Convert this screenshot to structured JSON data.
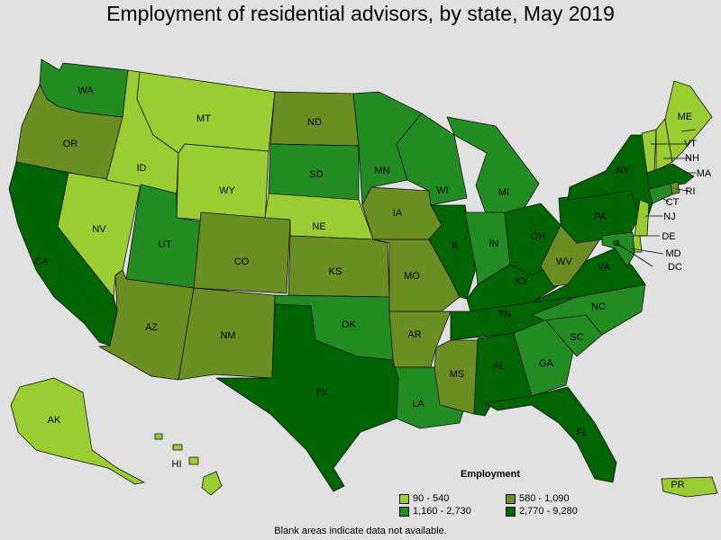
{
  "title": "Employment of residential advisors, by state, May 2019",
  "legend": {
    "title": "Employment",
    "bins": [
      {
        "label": "90 - 540",
        "color": "#9acd32"
      },
      {
        "label": "580 - 1,090",
        "color": "#6b8e23"
      },
      {
        "label": "1,160 - 2,730",
        "color": "#228b22"
      },
      {
        "label": "2,770 - 9,280",
        "color": "#006400"
      }
    ]
  },
  "footnote": "Blank areas indicate data not available.",
  "colors": {
    "background": "#e1e1e1",
    "border": "#111111"
  },
  "states": [
    {
      "abbr": "WA",
      "bin": 2
    },
    {
      "abbr": "OR",
      "bin": 1
    },
    {
      "abbr": "CA",
      "bin": 3
    },
    {
      "abbr": "NV",
      "bin": 0
    },
    {
      "abbr": "ID",
      "bin": 0
    },
    {
      "abbr": "MT",
      "bin": 0
    },
    {
      "abbr": "WY",
      "bin": 0
    },
    {
      "abbr": "UT",
      "bin": 2
    },
    {
      "abbr": "AZ",
      "bin": 1
    },
    {
      "abbr": "CO",
      "bin": 1
    },
    {
      "abbr": "NM",
      "bin": 1
    },
    {
      "abbr": "ND",
      "bin": 1
    },
    {
      "abbr": "SD",
      "bin": 2
    },
    {
      "abbr": "NE",
      "bin": 0
    },
    {
      "abbr": "KS",
      "bin": 1
    },
    {
      "abbr": "OK",
      "bin": 2
    },
    {
      "abbr": "TX",
      "bin": 3
    },
    {
      "abbr": "MN",
      "bin": 2
    },
    {
      "abbr": "IA",
      "bin": 1
    },
    {
      "abbr": "MO",
      "bin": 1
    },
    {
      "abbr": "AR",
      "bin": 1
    },
    {
      "abbr": "LA",
      "bin": 2
    },
    {
      "abbr": "WI",
      "bin": 2
    },
    {
      "abbr": "IL",
      "bin": 3
    },
    {
      "abbr": "MI",
      "bin": 2
    },
    {
      "abbr": "IN",
      "bin": 2
    },
    {
      "abbr": "OH",
      "bin": 3
    },
    {
      "abbr": "KY",
      "bin": 3
    },
    {
      "abbr": "TN",
      "bin": 3
    },
    {
      "abbr": "MS",
      "bin": 1
    },
    {
      "abbr": "AL",
      "bin": 3
    },
    {
      "abbr": "GA",
      "bin": 2
    },
    {
      "abbr": "FL",
      "bin": 3
    },
    {
      "abbr": "SC",
      "bin": 2
    },
    {
      "abbr": "NC",
      "bin": 2
    },
    {
      "abbr": "VA",
      "bin": 3
    },
    {
      "abbr": "WV",
      "bin": 1
    },
    {
      "abbr": "PA",
      "bin": 3
    },
    {
      "abbr": "NY",
      "bin": 3
    },
    {
      "abbr": "VT",
      "bin": 0
    },
    {
      "abbr": "NH",
      "bin": 0
    },
    {
      "abbr": "ME",
      "bin": 0
    },
    {
      "abbr": "MA",
      "bin": 3
    },
    {
      "abbr": "RI",
      "bin": 1
    },
    {
      "abbr": "CT",
      "bin": 2
    },
    {
      "abbr": "NJ",
      "bin": 0
    },
    {
      "abbr": "DE",
      "bin": 0
    },
    {
      "abbr": "MD",
      "bin": 2
    },
    {
      "abbr": "DC",
      "bin": 3
    },
    {
      "abbr": "AK",
      "bin": 0
    },
    {
      "abbr": "HI",
      "bin": 0
    },
    {
      "abbr": "PR",
      "bin": 0
    }
  ]
}
